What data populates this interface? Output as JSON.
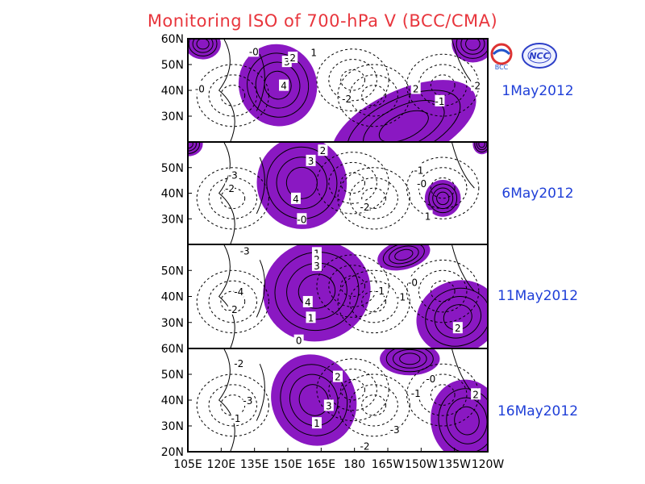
{
  "title": "Monitoring ISO of 700-hPa V (BCC/CMA)",
  "logos": {
    "left": "BCC",
    "right": "NCC"
  },
  "colors": {
    "title": "#e8363d",
    "date": "#1f3fd8",
    "positive_fill": "#8a18c2",
    "contour": "#000000"
  },
  "chart_data": {
    "type": "contour-panels",
    "title": "Monitoring ISO of 700-hPa V (BCC/CMA)",
    "x_axis": {
      "range": [
        "105E",
        "120W"
      ],
      "tick_labels": [
        "105E",
        "120E",
        "135E",
        "150E",
        "165E",
        "180",
        "165W",
        "150W",
        "135W",
        "120W"
      ]
    },
    "panels": [
      {
        "date": "1May2012",
        "lat_range": [
          20,
          60
        ],
        "y_tick_labels": [
          "60N",
          "50N",
          "40N",
          "30N"
        ],
        "contour_labels": [
          "-0",
          "3",
          "2",
          "1",
          "4",
          "-0",
          "-2",
          "2",
          "-1",
          "-2"
        ]
      },
      {
        "date": "6May2012",
        "lat_range": [
          20,
          60
        ],
        "y_tick_labels": [
          "50N",
          "40N",
          "30N"
        ],
        "contour_labels": [
          "3",
          "2",
          "-3",
          "-2",
          "4",
          "-0",
          "-1",
          "-0",
          "-2",
          "1"
        ]
      },
      {
        "date": "11May2012",
        "lat_range": [
          20,
          60
        ],
        "y_tick_labels": [
          "50N",
          "40N",
          "30N"
        ],
        "contour_labels": [
          "-3",
          "1",
          "2",
          "3",
          "-4",
          "-2",
          "4",
          "1",
          "-1",
          "-0",
          "-1",
          "0",
          "2"
        ]
      },
      {
        "date": "16May2012",
        "lat_range": [
          20,
          60
        ],
        "y_tick_labels": [
          "60N",
          "50N",
          "40N",
          "30N",
          "20N"
        ],
        "contour_labels": [
          "-2",
          "2",
          "-1",
          "-0",
          "-3",
          "3",
          "-1",
          "1",
          "-3",
          "-2",
          "2"
        ]
      }
    ]
  }
}
